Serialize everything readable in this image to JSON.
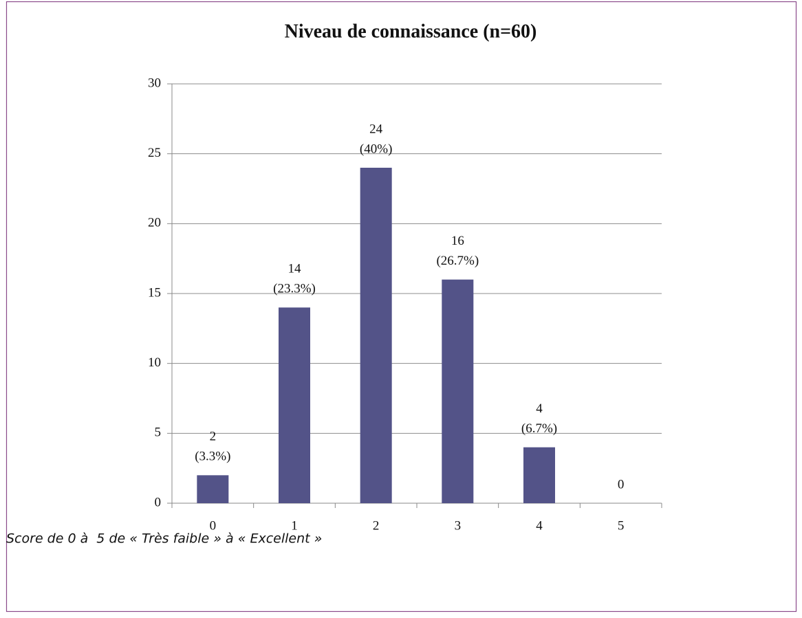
{
  "chart_data": {
    "type": "bar",
    "title": "Niveau de connaissance (n=60)",
    "categories": [
      "0",
      "1",
      "2",
      "3",
      "4",
      "5"
    ],
    "values": [
      2,
      14,
      24,
      16,
      4,
      0
    ],
    "value_labels": [
      [
        "2",
        "(3.3%)"
      ],
      [
        "14",
        "(23.3%)"
      ],
      [
        "24",
        "(40%)"
      ],
      [
        "16",
        "(26.7%)"
      ],
      [
        "4",
        "(6.7%)"
      ],
      [
        "0"
      ]
    ],
    "color": "#535388",
    "ylim": [
      0,
      30
    ],
    "yticks": [
      0,
      5,
      10,
      15,
      20,
      25,
      30
    ],
    "grid": true,
    "caption": "Score de 0 à  5 de « Très faible » à « Excellent »"
  }
}
